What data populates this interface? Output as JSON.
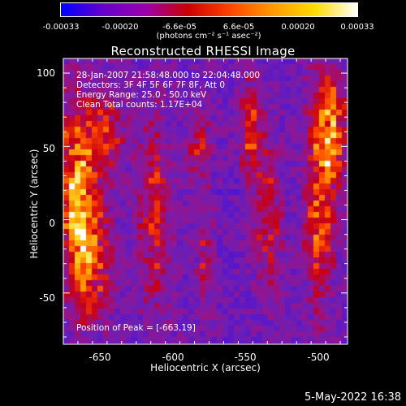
{
  "colorbar": {
    "tick_labels": [
      "-0.00033",
      "-0.00020",
      "-6.6e-05",
      "6.6e-05",
      "0.00020",
      "0.00033"
    ],
    "units_label": "(photons cm⁻² s⁻¹ asec⁻²)",
    "colors": [
      "#0000ff",
      "#6600cc",
      "#9900aa",
      "#cc0000",
      "#ff4400",
      "#ff9900",
      "#ffdd00",
      "#ffffff"
    ]
  },
  "chart_data": {
    "type": "heatmap",
    "title": "Reconstructed RHESSI Image",
    "xlabel": "Heliocentric X (arcsec)",
    "ylabel": "Heliocentric Y (arcsec)",
    "xlim": [
      -675,
      -480
    ],
    "ylim": [
      -85,
      110
    ],
    "x_ticks": [
      "-650",
      "-600",
      "-550",
      "-500"
    ],
    "y_ticks": [
      "100",
      "50",
      "0",
      "-50"
    ],
    "x_tick_values": [
      -650,
      -600,
      -550,
      -500
    ],
    "y_tick_values": [
      100,
      50,
      0,
      -50
    ],
    "colorbar_range": [
      -0.00033,
      0.00033
    ],
    "annotations": [
      "28-Jan-2007 21:58:48.000 to 22:04:48.000",
      "Detectors: 3F 4F 5F 6F 7F 8F, Att 0",
      "Energy Range: 25.0 - 50.0 keV",
      "Clean     Total counts: 1.17E+04"
    ],
    "peak_label": "Position of Peak = [-663,19]",
    "peak_position": [
      -663,
      19
    ]
  },
  "datestamp": "5-May-2022 16:38"
}
